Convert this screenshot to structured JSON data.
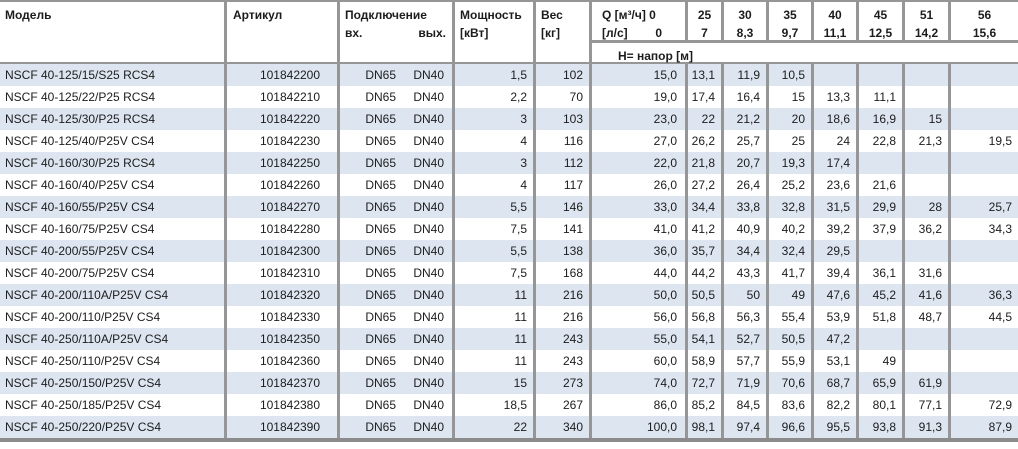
{
  "table": {
    "headers": {
      "model": "Модель",
      "article": "Артикул",
      "connection": "Подключение",
      "inlet": "вх.",
      "outlet": "вых.",
      "power_line1": "Мощность",
      "power_line2": "[кВт]",
      "weight_line1": "Вес",
      "weight_line2": "[кг]",
      "q_line1": "Q [м³/ч] 0",
      "q_line2_label": "[л/с]",
      "q_line2_value": "0",
      "head_band": "H= напор [м]",
      "flow_m3h": [
        "25",
        "30",
        "35",
        "40",
        "45",
        "51",
        "56"
      ],
      "flow_ls": [
        "7",
        "8,3",
        "9,7",
        "11,1",
        "12,5",
        "14,2",
        "15,6"
      ]
    },
    "rows": [
      {
        "model": "NSCF 40-125/15/S25 RCS4",
        "article": "101842200",
        "inlet": "DN65",
        "outlet": "DN40",
        "power": "1,5",
        "weight": "102",
        "h": [
          "15,0",
          "13,1",
          "11,9",
          "10,5",
          "",
          "",
          "",
          ""
        ]
      },
      {
        "model": "NSCF 40-125/22/P25 RCS4",
        "article": "101842210",
        "inlet": "DN65",
        "outlet": "DN40",
        "power": "2,2",
        "weight": "70",
        "h": [
          "19,0",
          "17,4",
          "16,4",
          "15",
          "13,3",
          "11,1",
          "",
          ""
        ]
      },
      {
        "model": "NSCF 40-125/30/P25 RCS4",
        "article": "101842220",
        "inlet": "DN65",
        "outlet": "DN40",
        "power": "3",
        "weight": "103",
        "h": [
          "23,0",
          "22",
          "21,2",
          "20",
          "18,6",
          "16,9",
          "15",
          ""
        ]
      },
      {
        "model": "NSCF 40-125/40/P25V CS4",
        "article": "101842230",
        "inlet": "DN65",
        "outlet": "DN40",
        "power": "4",
        "weight": "116",
        "h": [
          "27,0",
          "26,2",
          "25,7",
          "25",
          "24",
          "22,8",
          "21,3",
          "19,5"
        ]
      },
      {
        "model": "NSCF 40-160/30/P25 RCS4",
        "article": "101842250",
        "inlet": "DN65",
        "outlet": "DN40",
        "power": "3",
        "weight": "112",
        "h": [
          "22,0",
          "21,8",
          "20,7",
          "19,3",
          "17,4",
          "",
          "",
          ""
        ]
      },
      {
        "model": "NSCF 40-160/40/P25V CS4",
        "article": "101842260",
        "inlet": "DN65",
        "outlet": "DN40",
        "power": "4",
        "weight": "117",
        "h": [
          "26,0",
          "27,2",
          "26,4",
          "25,2",
          "23,6",
          "21,6",
          "",
          ""
        ]
      },
      {
        "model": "NSCF 40-160/55/P25V CS4",
        "article": "101842270",
        "inlet": "DN65",
        "outlet": "DN40",
        "power": "5,5",
        "weight": "146",
        "h": [
          "33,0",
          "34,4",
          "33,8",
          "32,8",
          "31,5",
          "29,9",
          "28",
          "25,7"
        ]
      },
      {
        "model": "NSCF 40-160/75/P25V CS4",
        "article": "101842280",
        "inlet": "DN65",
        "outlet": "DN40",
        "power": "7,5",
        "weight": "141",
        "h": [
          "41,0",
          "41,2",
          "40,9",
          "40,2",
          "39,2",
          "37,9",
          "36,2",
          "34,3"
        ]
      },
      {
        "model": "NSCF 40-200/55/P25V CS4",
        "article": "101842300",
        "inlet": "DN65",
        "outlet": "DN40",
        "power": "5,5",
        "weight": "138",
        "h": [
          "36,0",
          "35,7",
          "34,4",
          "32,4",
          "29,5",
          "",
          "",
          ""
        ]
      },
      {
        "model": "NSCF 40-200/75/P25V CS4",
        "article": "101842310",
        "inlet": "DN65",
        "outlet": "DN40",
        "power": "7,5",
        "weight": "168",
        "h": [
          "44,0",
          "44,2",
          "43,3",
          "41,7",
          "39,4",
          "36,1",
          "31,6",
          ""
        ]
      },
      {
        "model": "NSCF 40-200/110A/P25V CS4",
        "article": "101842320",
        "inlet": "DN65",
        "outlet": "DN40",
        "power": "11",
        "weight": "216",
        "h": [
          "50,0",
          "50,5",
          "50",
          "49",
          "47,6",
          "45,2",
          "41,6",
          "36,3"
        ]
      },
      {
        "model": "NSCF 40-200/110/P25V CS4",
        "article": "101842330",
        "inlet": "DN65",
        "outlet": "DN40",
        "power": "11",
        "weight": "216",
        "h": [
          "56,0",
          "56,8",
          "56,3",
          "55,4",
          "53,9",
          "51,8",
          "48,7",
          "44,5"
        ]
      },
      {
        "model": "NSCF 40-250/110A/P25V CS4",
        "article": "101842350",
        "inlet": "DN65",
        "outlet": "DN40",
        "power": "11",
        "weight": "243",
        "h": [
          "55,0",
          "54,1",
          "52,7",
          "50,5",
          "47,2",
          "",
          "",
          ""
        ]
      },
      {
        "model": "NSCF 40-250/110/P25V CS4",
        "article": "101842360",
        "inlet": "DN65",
        "outlet": "DN40",
        "power": "11",
        "weight": "243",
        "h": [
          "60,0",
          "58,9",
          "57,7",
          "55,9",
          "53,1",
          "49",
          "",
          ""
        ]
      },
      {
        "model": "NSCF 40-250/150/P25V CS4",
        "article": "101842370",
        "inlet": "DN65",
        "outlet": "DN40",
        "power": "15",
        "weight": "273",
        "h": [
          "74,0",
          "72,7",
          "71,9",
          "70,6",
          "68,7",
          "65,9",
          "61,9",
          ""
        ]
      },
      {
        "model": "NSCF 40-250/185/P25V CS4",
        "article": "101842380",
        "inlet": "DN65",
        "outlet": "DN40",
        "power": "18,5",
        "weight": "267",
        "h": [
          "86,0",
          "85,2",
          "84,5",
          "83,6",
          "82,2",
          "80,1",
          "77,1",
          "72,9"
        ]
      },
      {
        "model": "NSCF 40-250/220/P25V CS4",
        "article": "101842390",
        "inlet": "DN65",
        "outlet": "DN40",
        "power": "22",
        "weight": "340",
        "h": [
          "100,0",
          "98,1",
          "97,4",
          "96,6",
          "95,5",
          "93,8",
          "91,3",
          "87,9"
        ]
      }
    ],
    "colors": {
      "alt_row": "#dde6f0",
      "grid_line": "#969696",
      "bottom_bar": "#8b8b8b"
    }
  }
}
